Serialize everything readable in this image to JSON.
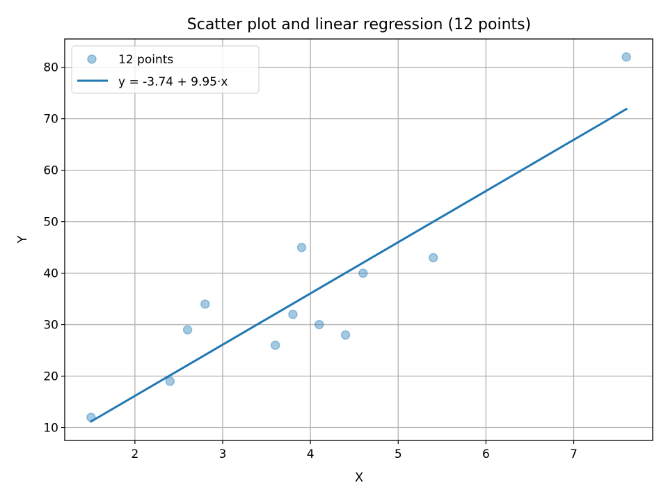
{
  "chart_data": {
    "type": "scatter",
    "title": "Scatter plot and linear regression (12 points)",
    "xlabel": "X",
    "ylabel": "Y",
    "xlim": [
      1.2,
      7.9
    ],
    "ylim": [
      7.5,
      85.5
    ],
    "xticks": [
      2,
      3,
      4,
      5,
      6,
      7
    ],
    "yticks": [
      10,
      20,
      30,
      40,
      50,
      60,
      70,
      80
    ],
    "grid": true,
    "legend_position": "top-left",
    "series": [
      {
        "name": "12 points",
        "kind": "scatter",
        "color": "#1f77b4",
        "points": [
          {
            "x": 1.5,
            "y": 12
          },
          {
            "x": 2.4,
            "y": 19
          },
          {
            "x": 2.6,
            "y": 29
          },
          {
            "x": 2.8,
            "y": 34
          },
          {
            "x": 3.6,
            "y": 26
          },
          {
            "x": 3.8,
            "y": 32
          },
          {
            "x": 3.9,
            "y": 45
          },
          {
            "x": 4.1,
            "y": 30
          },
          {
            "x": 4.4,
            "y": 28
          },
          {
            "x": 4.6,
            "y": 40
          },
          {
            "x": 5.4,
            "y": 43
          },
          {
            "x": 7.6,
            "y": 82
          }
        ]
      },
      {
        "name": "y = -3.74 + 9.95·x",
        "kind": "line",
        "color": "#1f77b4",
        "intercept": -3.74,
        "slope": 9.95,
        "x_range": [
          1.5,
          7.6
        ]
      }
    ]
  }
}
